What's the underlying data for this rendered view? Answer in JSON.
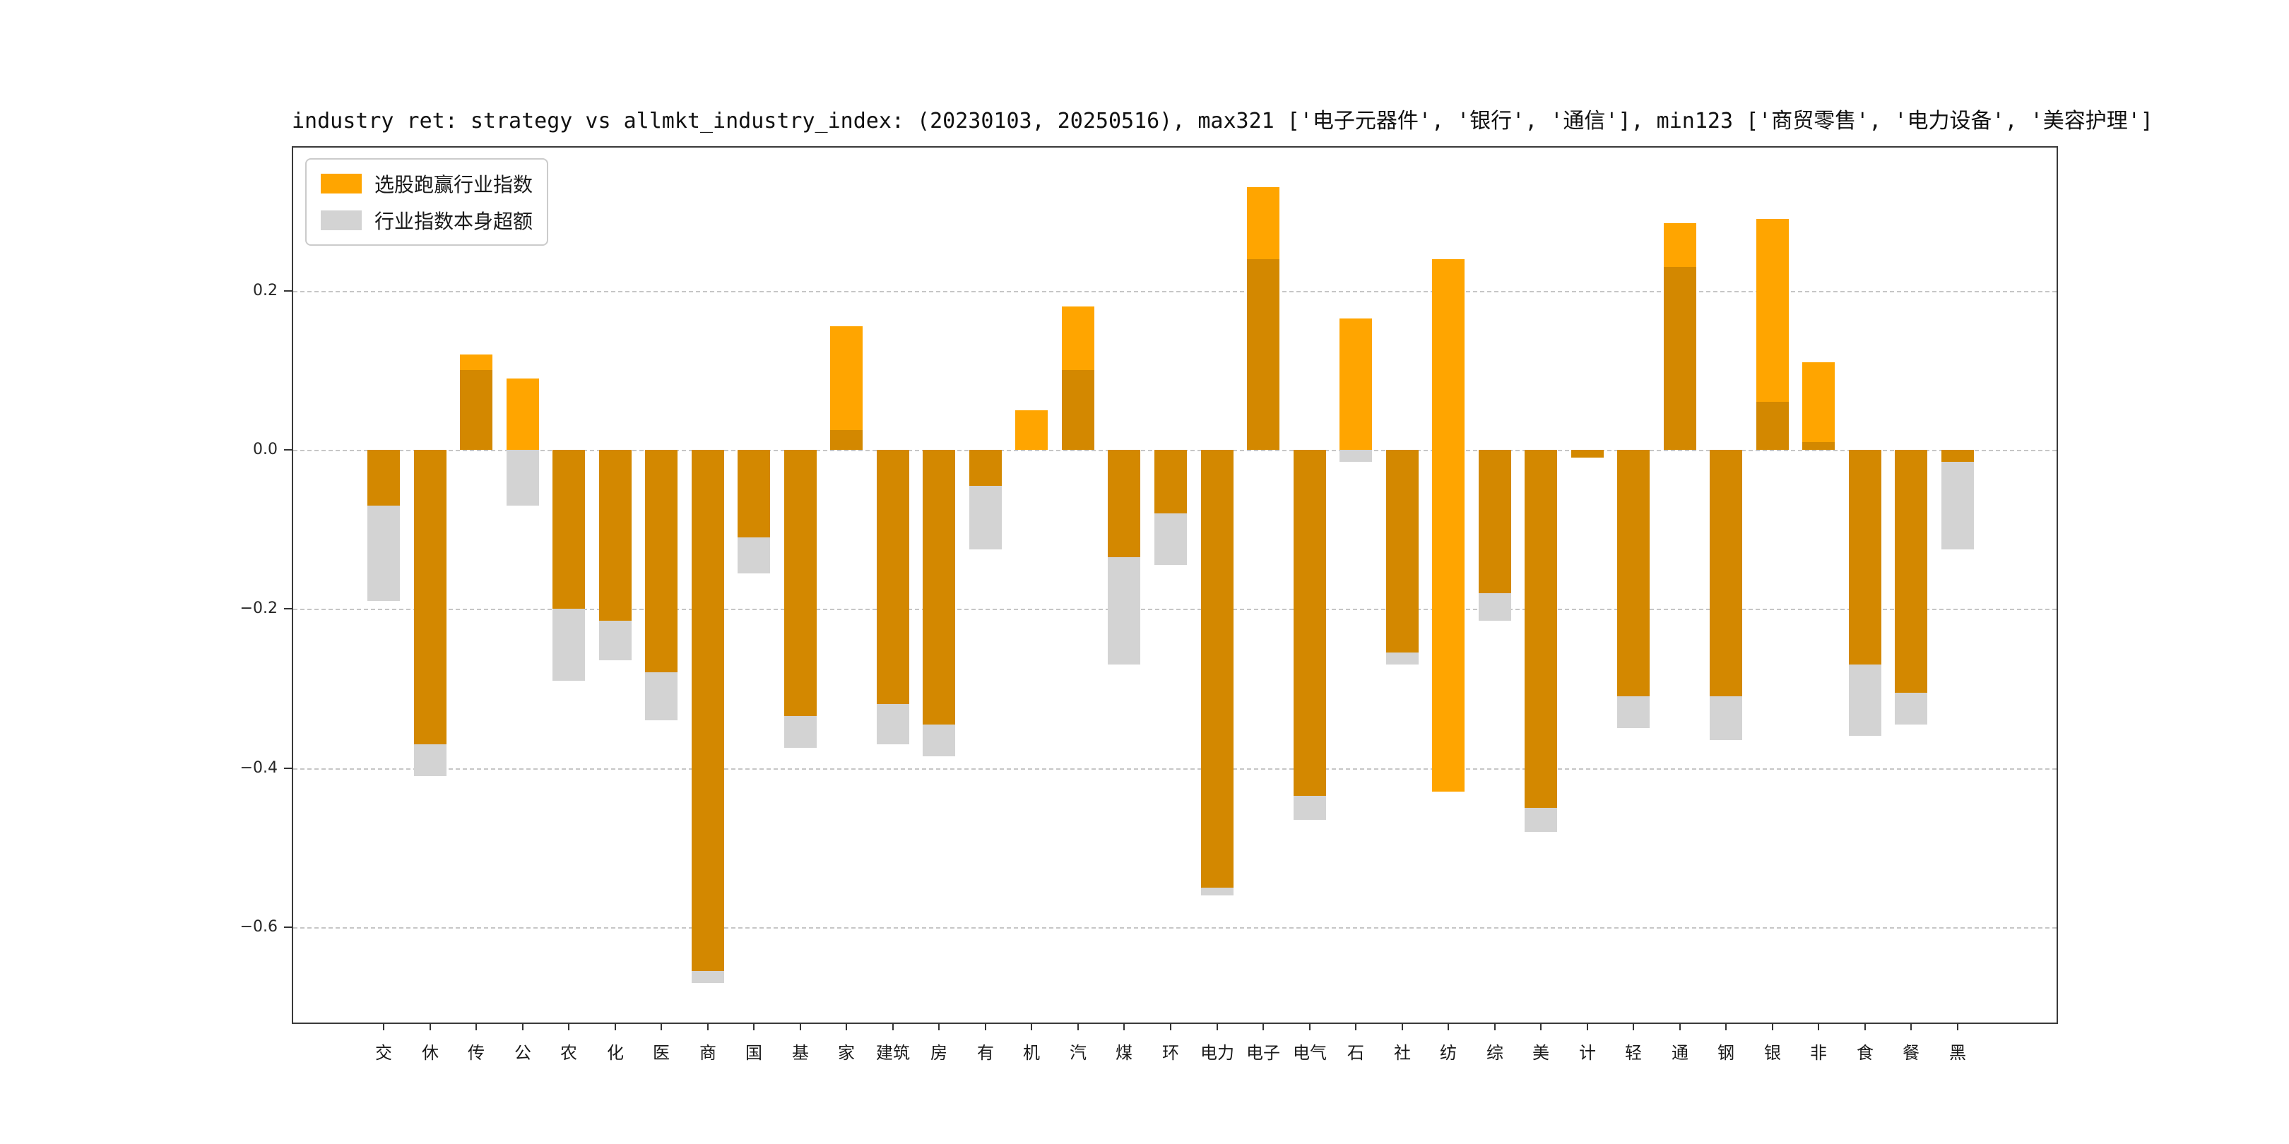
{
  "chart_data": {
    "type": "bar",
    "title": "industry ret: strategy vs allmkt_industry_index: (20230103, 20250516), max321 ['电子元器件', '银行', '通信'], min123 ['商贸零售', '电力设备', '美容护理']",
    "xlabel": "",
    "ylabel": "",
    "grid": true,
    "legend_position": "upper left",
    "background": "#FFFFFF",
    "ylim": [
      -0.72,
      0.38
    ],
    "yticks": [
      0.2,
      0.0,
      -0.2,
      -0.4,
      -0.6
    ],
    "overlap_color": "#D38800",
    "categories": [
      "交",
      "休",
      "传",
      "公",
      "农",
      "化",
      "医",
      "商",
      "国",
      "基",
      "家",
      "建筑",
      "房",
      "有",
      "机",
      "汽",
      "煤",
      "环",
      "电力",
      "电子",
      "电气",
      "石",
      "社",
      "纺",
      "综",
      "美",
      "计",
      "轻",
      "通",
      "钢",
      "银",
      "非",
      "食",
      "餐",
      "黑"
    ],
    "series": [
      {
        "name": "选股跑赢行业指数",
        "color": "#FFA500",
        "ranges": [
          [
            -0.07,
            0
          ],
          [
            -0.37,
            0
          ],
          [
            0,
            0.12
          ],
          [
            0,
            0.09
          ],
          [
            -0.2,
            0
          ],
          [
            -0.215,
            0
          ],
          [
            -0.28,
            0
          ],
          [
            -0.655,
            0
          ],
          [
            -0.11,
            0
          ],
          [
            -0.335,
            0
          ],
          [
            0,
            0.155
          ],
          [
            -0.32,
            0
          ],
          [
            -0.345,
            0
          ],
          [
            -0.045,
            0
          ],
          [
            0,
            0.05
          ],
          [
            0,
            0.18
          ],
          [
            -0.135,
            0
          ],
          [
            -0.08,
            0
          ],
          [
            -0.55,
            0
          ],
          [
            0,
            0.33
          ],
          [
            -0.435,
            0
          ],
          [
            0,
            0.165
          ],
          [
            -0.255,
            0
          ],
          [
            -0.43,
            0.24
          ],
          [
            -0.18,
            0
          ],
          [
            -0.45,
            0
          ],
          [
            -0.01,
            0
          ],
          [
            -0.31,
            0
          ],
          [
            0,
            0.285
          ],
          [
            -0.31,
            0
          ],
          [
            0,
            0.29
          ],
          [
            0,
            0.11
          ],
          [
            -0.27,
            0
          ],
          [
            -0.305,
            0
          ],
          [
            -0.015,
            0
          ]
        ]
      },
      {
        "name": "行业指数本身超额",
        "color": "#D3D3D3",
        "ranges": [
          [
            -0.19,
            0
          ],
          [
            -0.41,
            0
          ],
          [
            0,
            0.1
          ],
          [
            -0.07,
            0
          ],
          [
            -0.29,
            0
          ],
          [
            -0.265,
            0
          ],
          [
            -0.34,
            0
          ],
          [
            -0.67,
            0
          ],
          [
            -0.155,
            0
          ],
          [
            -0.375,
            0
          ],
          [
            0,
            0.025
          ],
          [
            -0.37,
            0
          ],
          [
            -0.385,
            0
          ],
          [
            -0.125,
            0
          ],
          [
            0,
            0
          ],
          [
            0,
            0.1
          ],
          [
            -0.27,
            0
          ],
          [
            -0.145,
            0
          ],
          [
            -0.56,
            0
          ],
          [
            0,
            0.24
          ],
          [
            -0.465,
            0
          ],
          [
            -0.015,
            0
          ],
          [
            -0.27,
            0
          ],
          [
            0,
            0
          ],
          [
            -0.215,
            0
          ],
          [
            -0.48,
            0
          ],
          [
            -0.01,
            0
          ],
          [
            -0.35,
            0
          ],
          [
            0,
            0.23
          ],
          [
            -0.365,
            0
          ],
          [
            0,
            0.06
          ],
          [
            0,
            0.01
          ],
          [
            -0.36,
            0
          ],
          [
            -0.345,
            0
          ],
          [
            -0.125,
            0
          ]
        ]
      }
    ]
  }
}
